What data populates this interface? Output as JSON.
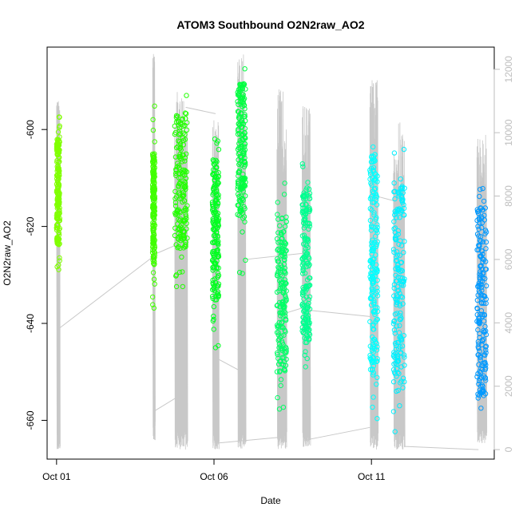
{
  "chart_data": {
    "type": "scatter",
    "title": "ATOM3 Southbound O2N2raw_AO2",
    "xlabel": "Date",
    "ylabel": "O2N2raw_AO2",
    "x_unit": "days since Oct 01 (data units of the date axis)",
    "xlim": [
      -0.3,
      13.9
    ],
    "ylim": [
      -668,
      -583
    ],
    "x_ticks": [
      {
        "value": 0,
        "label": "Oct 01"
      },
      {
        "value": 5,
        "label": "Oct 06"
      },
      {
        "value": 10,
        "label": "Oct 11"
      }
    ],
    "y_ticks": [
      -600,
      -620,
      -640,
      -660
    ],
    "y2_ylim": [
      -300,
      12700
    ],
    "y2_ticks": [
      0,
      2000,
      4000,
      6000,
      8000,
      10000,
      12000
    ],
    "y2_color": "#bebebe",
    "grid": false,
    "legend": "none",
    "point_series": [
      {
        "x_start": 0.0,
        "x_end": 0.1,
        "y_min": -629,
        "y_max": -597,
        "y_core_min": -624,
        "y_core_max": -602,
        "color": "#80ff00"
      },
      {
        "x_start": 3.05,
        "x_end": 3.12,
        "y_min": -637,
        "y_max": -593,
        "y_core_min": -628,
        "y_core_max": -605,
        "color": "#40ff00"
      },
      {
        "x_start": 3.75,
        "x_end": 4.15,
        "y_min": -633,
        "y_max": -592,
        "y_core_min": -625,
        "y_core_max": -597,
        "color": "#22ff00"
      },
      {
        "x_start": 4.95,
        "x_end": 5.15,
        "y_min": -645,
        "y_max": -596,
        "y_core_min": -636,
        "y_core_max": -606,
        "color": "#00ff20"
      },
      {
        "x_start": 5.75,
        "x_end": 6.0,
        "y_min": -631,
        "y_max": -585,
        "y_core_min": -618,
        "y_core_max": -590,
        "color": "#00ff40"
      },
      {
        "x_start": 7.0,
        "x_end": 7.3,
        "y_min": -658,
        "y_max": -610,
        "y_core_min": -650,
        "y_core_max": -618,
        "color": "#00ff66"
      },
      {
        "x_start": 7.8,
        "x_end": 8.05,
        "y_min": -649,
        "y_max": -606,
        "y_core_min": -644,
        "y_core_max": -612,
        "color": "#00ff90"
      },
      {
        "x_start": 9.95,
        "x_end": 10.2,
        "y_min": -660,
        "y_max": -602,
        "y_core_min": -652,
        "y_core_max": -605,
        "color": "#00ffff"
      },
      {
        "x_start": 10.7,
        "x_end": 11.05,
        "y_min": -665,
        "y_max": -603,
        "y_core_min": -655,
        "y_core_max": -612,
        "color": "#00f0ff"
      },
      {
        "x_start": 13.35,
        "x_end": 13.65,
        "y_min": -660,
        "y_max": -610,
        "y_core_min": -655,
        "y_core_max": -616,
        "color": "#0099ff"
      }
    ],
    "line_series": {
      "name": "",
      "color": "#c8c8c8",
      "axis": "right",
      "spikes": [
        {
          "x_start": 0.0,
          "x_end": 0.1,
          "y_low": 0,
          "y_high": 11000
        },
        {
          "x_start": 3.05,
          "x_end": 3.12,
          "y_low": 300,
          "y_high": 12700
        },
        {
          "x_start": 3.75,
          "x_end": 4.15,
          "y_low": 0,
          "y_high": 11300
        },
        {
          "x_start": 4.95,
          "x_end": 5.15,
          "y_low": 0,
          "y_high": 10500
        },
        {
          "x_start": 5.75,
          "x_end": 6.0,
          "y_low": 0,
          "y_high": 12500
        },
        {
          "x_start": 7.0,
          "x_end": 7.3,
          "y_low": 0,
          "y_high": 11400
        },
        {
          "x_start": 7.8,
          "x_end": 8.05,
          "y_low": 0,
          "y_high": 10900
        },
        {
          "x_start": 9.95,
          "x_end": 10.2,
          "y_low": 0,
          "y_high": 11700
        },
        {
          "x_start": 10.7,
          "x_end": 11.05,
          "y_low": 0,
          "y_high": 10400
        },
        {
          "x_start": 13.35,
          "x_end": 13.65,
          "y_low": 200,
          "y_high": 10000
        }
      ],
      "connectors": [
        [
          0.05,
          3800,
          3.08,
          6100
        ],
        [
          3.08,
          1200,
          3.9,
          1700
        ],
        [
          3.2,
          6200,
          3.9,
          6500
        ],
        [
          4.1,
          10800,
          5.05,
          10600
        ],
        [
          5.05,
          2900,
          5.8,
          2500
        ],
        [
          5.05,
          200,
          7.2,
          400
        ],
        [
          6.0,
          6000,
          7.9,
          6200
        ],
        [
          7.9,
          300,
          9.95,
          700
        ],
        [
          8.0,
          4400,
          9.95,
          4200
        ],
        [
          10.15,
          8000,
          10.9,
          7800
        ],
        [
          10.9,
          800,
          10.95,
          200
        ],
        [
          11.05,
          100,
          13.4,
          0
        ],
        [
          7.25,
          4300,
          7.9,
          4500
        ]
      ]
    }
  }
}
